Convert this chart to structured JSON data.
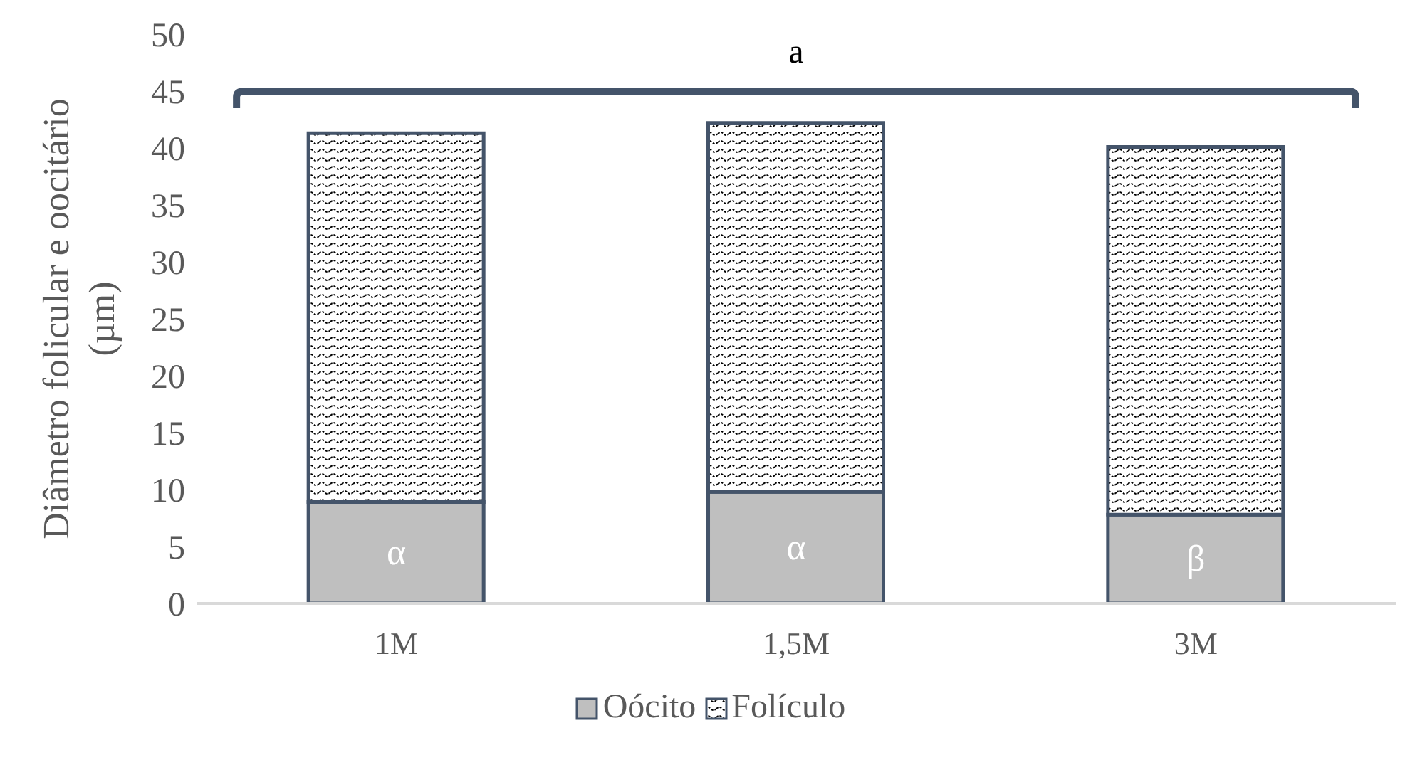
{
  "chart_data": {
    "type": "bar",
    "stacked": true,
    "ylabel": "Diâmetro folicular e oocitário (µm)",
    "categories": [
      "1M",
      "1,5M",
      "3M"
    ],
    "series": [
      {
        "name": "Oócito",
        "color": "#bfbfbf",
        "values": [
          8.9,
          9.8,
          7.8
        ]
      },
      {
        "name": "Folículo",
        "color": "#44546a",
        "values": [
          32.4,
          32.4,
          32.3
        ]
      }
    ],
    "ylim": [
      0,
      50
    ],
    "yticks": [
      0,
      5,
      10,
      15,
      20,
      25,
      30,
      35,
      40,
      45,
      50
    ],
    "grid": false,
    "legend": "bottom",
    "annotations": [
      "α",
      "α",
      "β",
      "a"
    ]
  }
}
